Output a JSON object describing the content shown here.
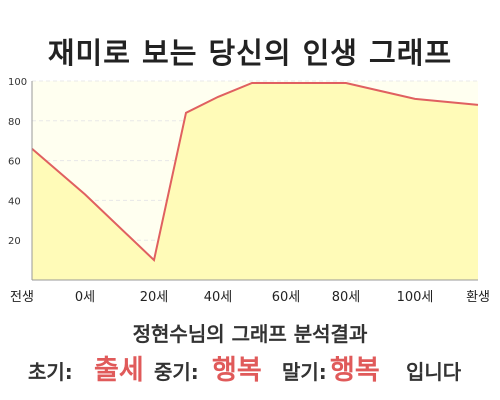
{
  "title": "재미로 보는 당신의 인생 그래프",
  "chart_data": {
    "type": "area",
    "x_categories": [
      "전생",
      "0세",
      "20세",
      "40세",
      "60세",
      "80세",
      "100세",
      "환생"
    ],
    "y_ticks": [
      20,
      40,
      60,
      80,
      100
    ],
    "ylim": [
      0,
      100
    ],
    "series": [
      {
        "points": [
          {
            "x": "전생",
            "y": 66
          },
          {
            "x": "0세",
            "y": 43
          },
          {
            "x": "20세",
            "y": 10
          },
          {
            "x": "30세",
            "y": 84
          },
          {
            "x": "40세",
            "y": 92
          },
          {
            "x": "50세",
            "y": 99
          },
          {
            "x": "60세",
            "y": 99
          },
          {
            "x": "80세",
            "y": 99
          },
          {
            "x": "100세",
            "y": 91
          },
          {
            "x": "환생",
            "y": 88
          }
        ]
      }
    ],
    "grid": true
  },
  "colors": {
    "fill": "#fffbb8",
    "line": "#e06060",
    "plot_bg": "#fffff0",
    "highlight": "#e05a5a"
  },
  "result": {
    "heading": "정현수님의 그래프 분석결과",
    "early_label": "초기:",
    "early_value": "출세",
    "mid_label": "중기:",
    "mid_value": "행복",
    "late_label": "말기:",
    "late_value": "행복",
    "suffix": "입니다"
  }
}
